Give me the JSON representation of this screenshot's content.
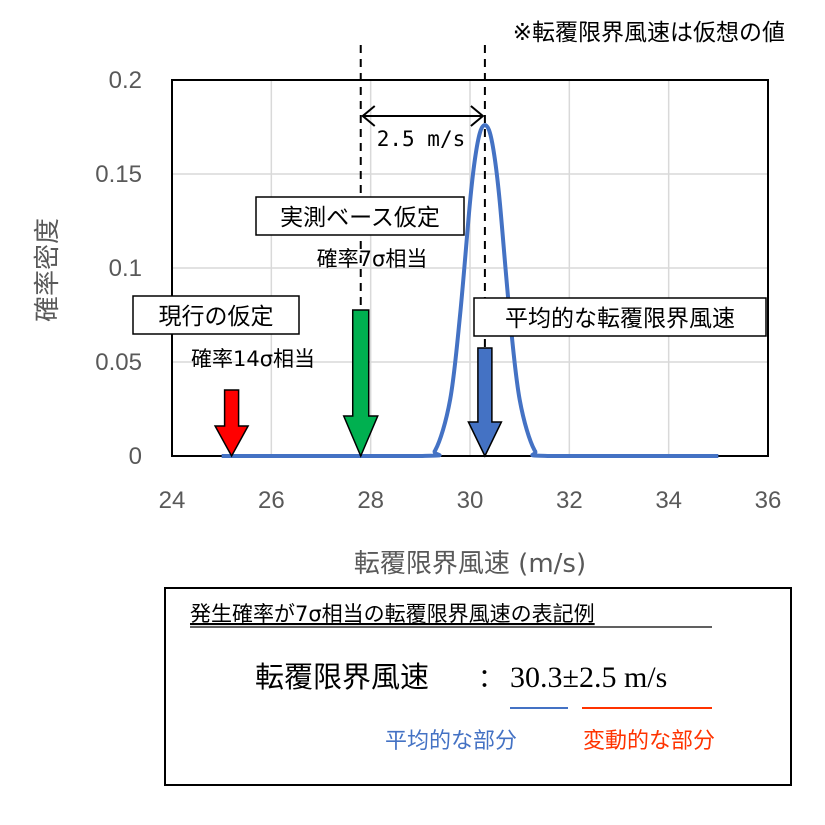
{
  "chart_data": {
    "type": "line",
    "note": "※転覆限界風速は仮想の値",
    "xlabel": "転覆限界風速 (m/s)",
    "ylabel": "確率密度",
    "xlim": [
      24,
      36
    ],
    "ylim": [
      0,
      0.2
    ],
    "x_ticks": [
      "24",
      "26",
      "28",
      "30",
      "32",
      "34",
      "36"
    ],
    "y_ticks": [
      "0",
      "0.05",
      "0.1",
      "0.15",
      "0.2"
    ],
    "grid": true,
    "series": [
      {
        "color": "#4472C4",
        "x": [
          25.0,
          29.0,
          29.3,
          29.6,
          29.8,
          30.0,
          30.1,
          30.2,
          30.3,
          30.4,
          30.5,
          30.6,
          30.8,
          31.0,
          31.3,
          31.6,
          35.0
        ],
        "y": [
          0.0,
          0.0,
          0.003,
          0.03,
          0.075,
          0.135,
          0.158,
          0.172,
          0.176,
          0.172,
          0.158,
          0.135,
          0.075,
          0.03,
          0.003,
          0.0,
          0.0
        ]
      }
    ],
    "annotations": {
      "spread_label": "2.5 m/s",
      "markers": [
        {
          "x": 25.2,
          "color": "#FF0000",
          "label": "現行の仮定",
          "sublabel": "確率14σ相当"
        },
        {
          "x": 27.8,
          "color": "#00B050",
          "label": "実測ベース仮定",
          "sublabel": "確率7σ相当"
        },
        {
          "x": 30.3,
          "color": "#4472C4",
          "label": "平均的な転覆限界風速",
          "sublabel": ""
        }
      ]
    }
  },
  "example_box": {
    "title": "発生確率が7σ相当の転覆限界風速の表記例",
    "main_label": "転覆限界風速",
    "separator": "：",
    "value_text": "30.3±2.5 m/s",
    "mean_part_label": "平均的な部分",
    "mean_part_color": "#4472C4",
    "variable_part_label": "変動的な部分",
    "variable_part_color": "#FF3300"
  }
}
